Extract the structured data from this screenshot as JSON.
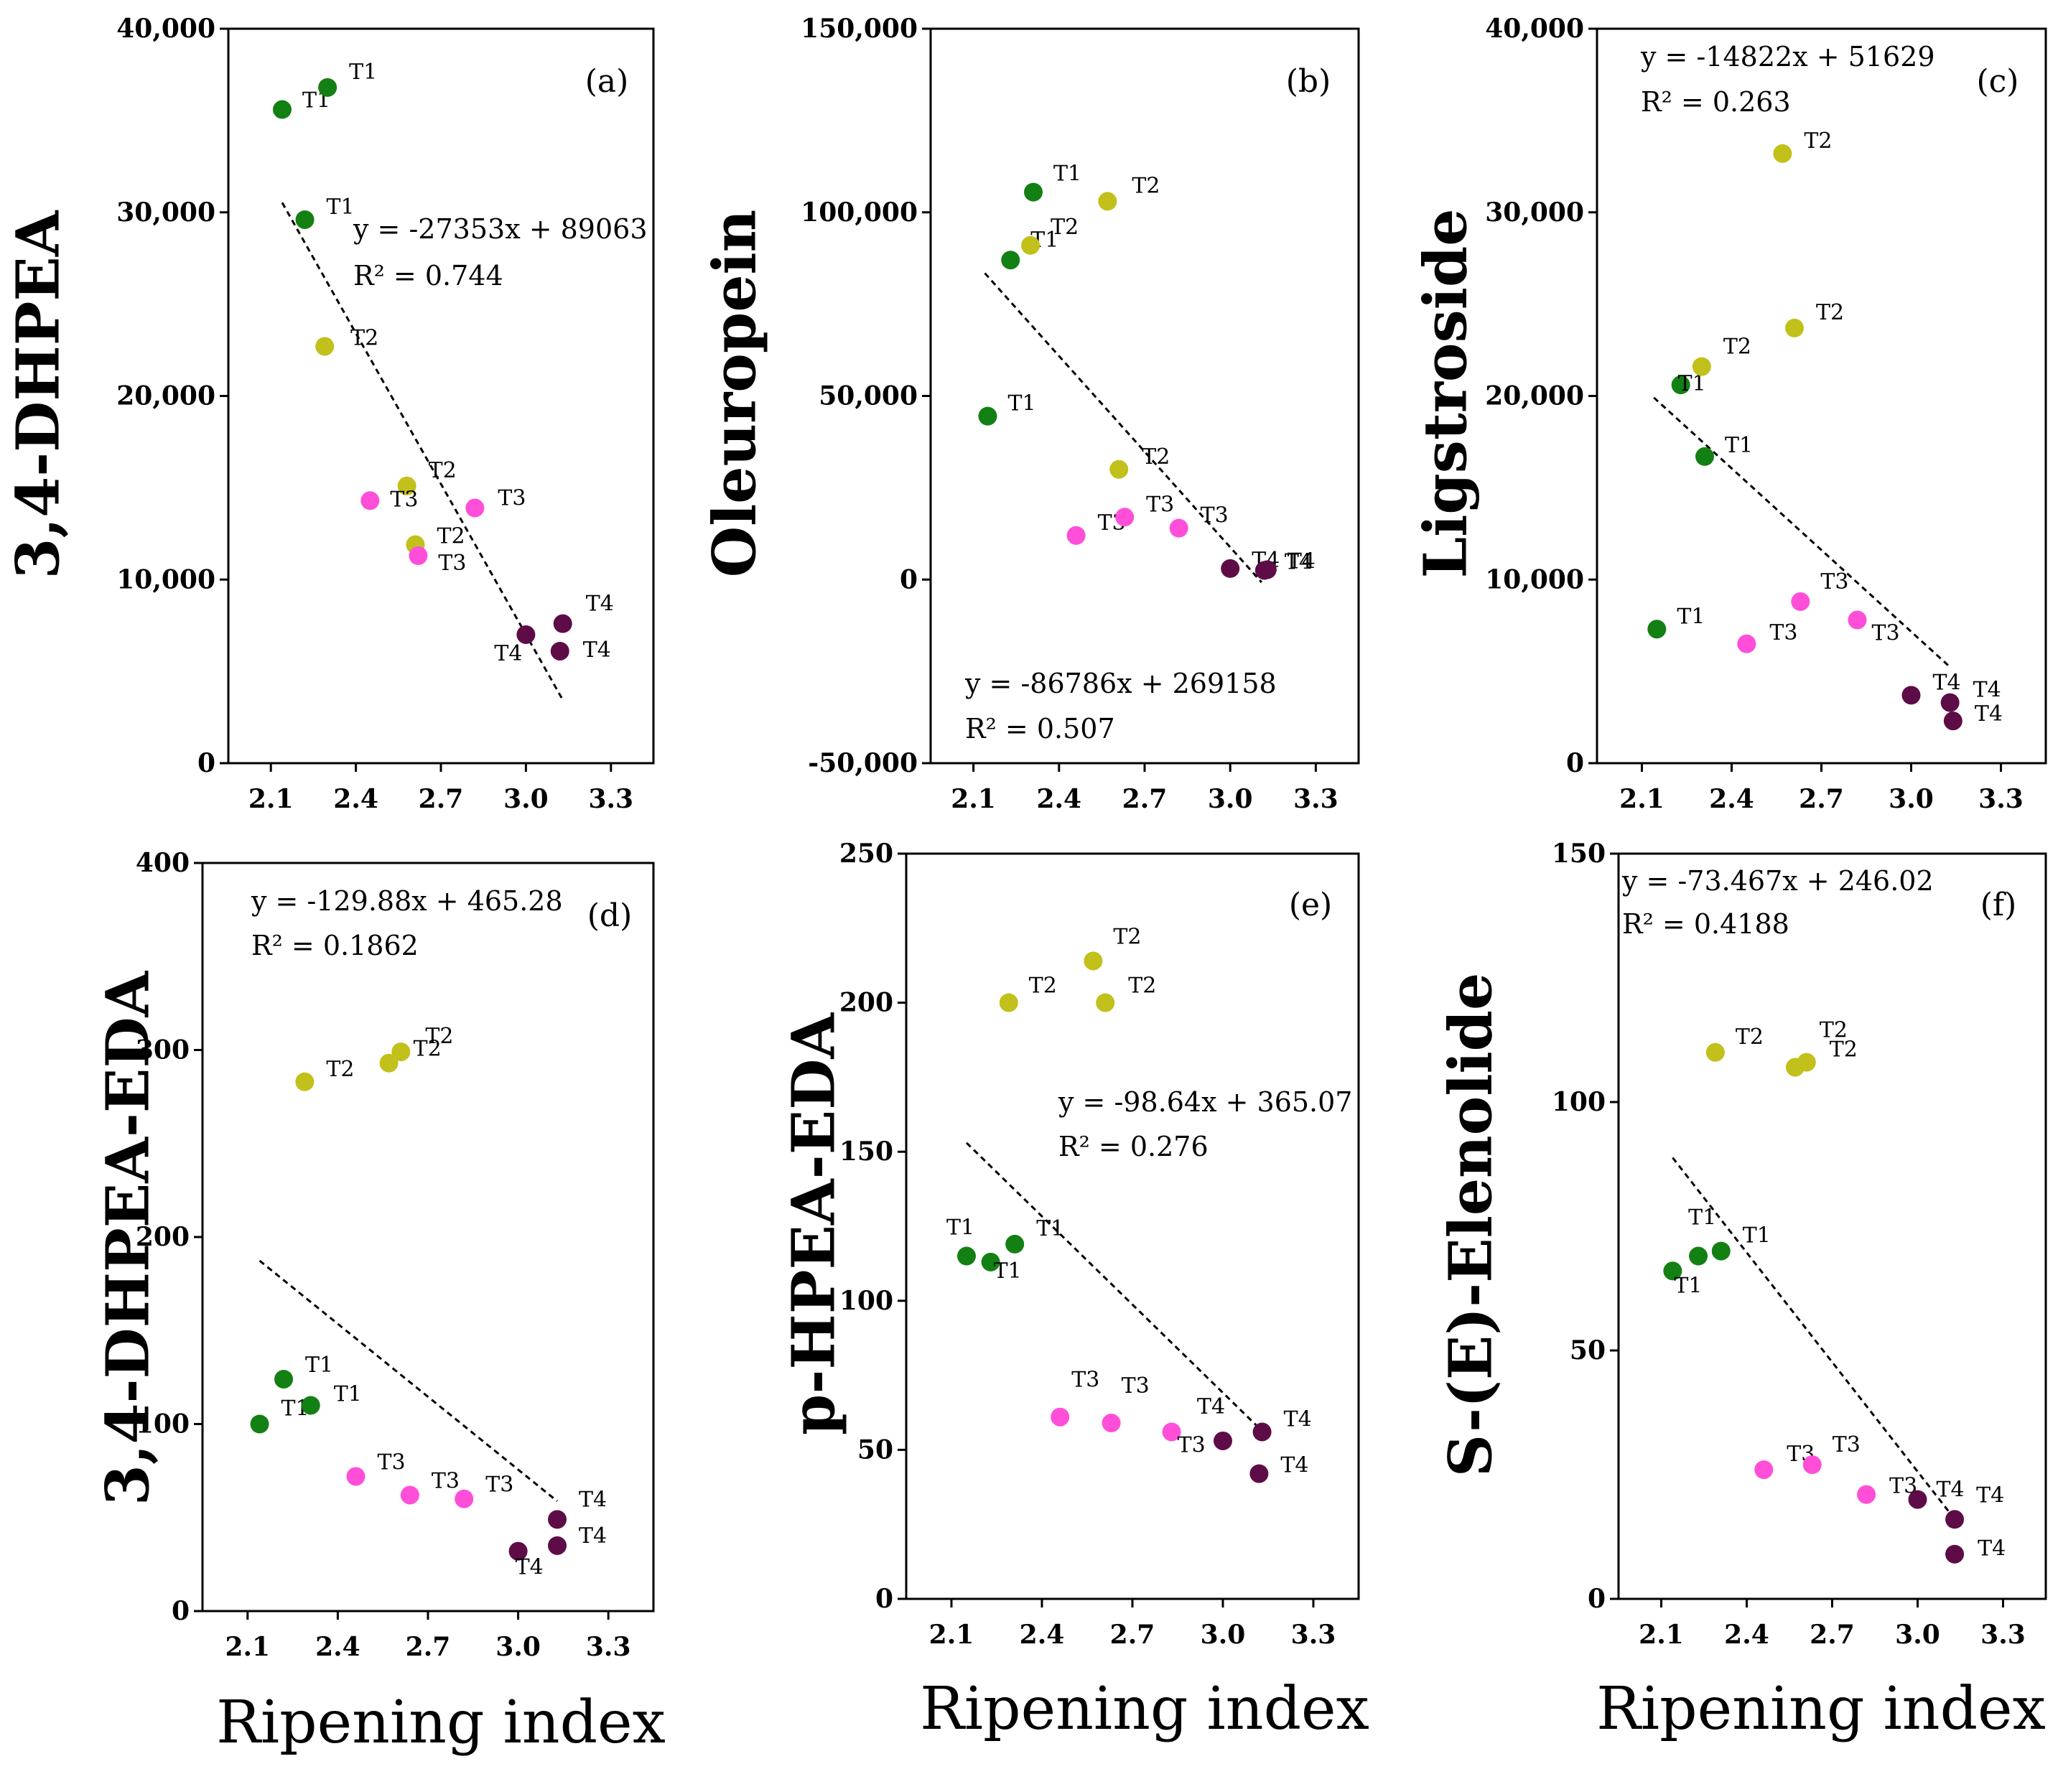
{
  "colors": {
    "T1": "#138013",
    "T2": "#c2c01a",
    "T3": "#ff4fd9",
    "T4": "#5e0c47",
    "axis": "#000000",
    "trend": "#000000"
  },
  "chart_data": [
    {
      "type": "scatter",
      "panel": "(a)",
      "ylabel": "3,4-DHPEA",
      "xlabel": "",
      "xlim": [
        1.95,
        3.45
      ],
      "xticks": [
        "2.1",
        "2.4",
        "2.7",
        "3.0",
        "3.3"
      ],
      "ylim": [
        0,
        40000
      ],
      "yticks": [
        {
          "v": 0,
          "t": "0"
        },
        {
          "v": 10000,
          "t": "10,000"
        },
        {
          "v": 20000,
          "t": "20,000"
        },
        {
          "v": 30000,
          "t": "30,000"
        },
        {
          "v": 40000,
          "t": "40,000"
        }
      ],
      "equation": "y = -27353x + 89063",
      "r2": "R² = 0.744",
      "trend": {
        "x1": 2.14,
        "x2": 3.13,
        "m": -27353,
        "b": 89063
      },
      "points": [
        {
          "x": 2.14,
          "y": 35600,
          "g": "T1",
          "label": "T1"
        },
        {
          "x": 2.3,
          "y": 36800,
          "g": "T1",
          "label": "T1"
        },
        {
          "x": 2.22,
          "y": 29600,
          "g": "T1",
          "label": "T1"
        },
        {
          "x": 2.29,
          "y": 22700,
          "g": "T2",
          "label": "T2"
        },
        {
          "x": 2.58,
          "y": 15100,
          "g": "T2",
          "label": "T2"
        },
        {
          "x": 2.61,
          "y": 11900,
          "g": "T2",
          "label": "T2"
        },
        {
          "x": 2.45,
          "y": 14300,
          "g": "T3",
          "label": "T3"
        },
        {
          "x": 2.62,
          "y": 11300,
          "g": "T3",
          "label": "T3"
        },
        {
          "x": 2.82,
          "y": 13900,
          "g": "T3",
          "label": "T3"
        },
        {
          "x": 3.0,
          "y": 7000,
          "g": "T4",
          "label": "T4"
        },
        {
          "x": 3.13,
          "y": 7600,
          "g": "T4",
          "label": "T4"
        },
        {
          "x": 3.12,
          "y": 6100,
          "g": "T4",
          "label": "T4"
        }
      ]
    },
    {
      "type": "scatter",
      "panel": "(b)",
      "ylabel": "Oleuropein",
      "xlabel": "",
      "xlim": [
        1.95,
        3.45
      ],
      "xticks": [
        "2.1",
        "2.4",
        "2.7",
        "3.0",
        "3.3"
      ],
      "ylim": [
        -50000,
        150000
      ],
      "yticks": [
        {
          "v": -50000,
          "t": "-50,000"
        },
        {
          "v": 0,
          "t": "0"
        },
        {
          "v": 50000,
          "t": "50,000"
        },
        {
          "v": 100000,
          "t": "100,000"
        },
        {
          "v": 150000,
          "t": "150,000"
        }
      ],
      "equation": "y = -86786x + 269158",
      "r2": "R² = 0.507",
      "trend": {
        "x1": 2.14,
        "x2": 3.11,
        "m": -86786,
        "b": 269158
      },
      "points": [
        {
          "x": 2.15,
          "y": 44500,
          "g": "T1",
          "label": "T1"
        },
        {
          "x": 2.23,
          "y": 87000,
          "g": "T1",
          "label": "T1"
        },
        {
          "x": 2.31,
          "y": 105500,
          "g": "T1",
          "label": "T1"
        },
        {
          "x": 2.3,
          "y": 91000,
          "g": "T2",
          "label": "T2"
        },
        {
          "x": 2.57,
          "y": 103000,
          "g": "T2",
          "label": "T2"
        },
        {
          "x": 2.61,
          "y": 30000,
          "g": "T2",
          "label": "T2"
        },
        {
          "x": 2.46,
          "y": 12000,
          "g": "T3",
          "label": "T3"
        },
        {
          "x": 2.63,
          "y": 17000,
          "g": "T3",
          "label": "T3"
        },
        {
          "x": 2.82,
          "y": 14000,
          "g": "T3",
          "label": "T3"
        },
        {
          "x": 3.0,
          "y": 3000,
          "g": "T4",
          "label": "T4"
        },
        {
          "x": 3.13,
          "y": 2700,
          "g": "T4",
          "label": "T4"
        },
        {
          "x": 3.12,
          "y": 2500,
          "g": "T4",
          "label": "T4"
        }
      ]
    },
    {
      "type": "scatter",
      "panel": "(c)",
      "ylabel": "Ligstroside",
      "xlabel": "",
      "xlim": [
        1.95,
        3.45
      ],
      "xticks": [
        "2.1",
        "2.4",
        "2.7",
        "3.0",
        "3.3"
      ],
      "ylim": [
        0,
        40000
      ],
      "yticks": [
        {
          "v": 0,
          "t": "0"
        },
        {
          "v": 10000,
          "t": "10,000"
        },
        {
          "v": 20000,
          "t": "20,000"
        },
        {
          "v": 30000,
          "t": "30,000"
        },
        {
          "v": 40000,
          "t": "40,000"
        }
      ],
      "equation": "y = -14822x + 51629",
      "r2": "R² = 0.263",
      "trend": {
        "x1": 2.14,
        "x2": 3.13,
        "m": -14822,
        "b": 51629
      },
      "points": [
        {
          "x": 2.15,
          "y": 7300,
          "g": "T1",
          "label": "T1"
        },
        {
          "x": 2.23,
          "y": 20600,
          "g": "T1",
          "label": "T1"
        },
        {
          "x": 2.31,
          "y": 16700,
          "g": "T1",
          "label": "T1"
        },
        {
          "x": 2.3,
          "y": 21600,
          "g": "T2",
          "label": "T2"
        },
        {
          "x": 2.57,
          "y": 33200,
          "g": "T2",
          "label": "T2"
        },
        {
          "x": 2.61,
          "y": 23700,
          "g": "T2",
          "label": "T2"
        },
        {
          "x": 2.45,
          "y": 6500,
          "g": "T3",
          "label": "T3"
        },
        {
          "x": 2.63,
          "y": 8800,
          "g": "T3",
          "label": "T3"
        },
        {
          "x": 2.82,
          "y": 7800,
          "g": "T3",
          "label": "T3"
        },
        {
          "x": 3.0,
          "y": 3700,
          "g": "T4",
          "label": "T4"
        },
        {
          "x": 3.13,
          "y": 3300,
          "g": "T4",
          "label": "T4"
        },
        {
          "x": 3.14,
          "y": 2300,
          "g": "T4",
          "label": "T4"
        }
      ]
    },
    {
      "type": "scatter",
      "panel": "(d)",
      "ylabel": "3,4-DHPEA-EDA",
      "xlabel": "Ripening index",
      "xlim": [
        1.95,
        3.45
      ],
      "xticks": [
        "2.1",
        "2.4",
        "2.7",
        "3.0",
        "3.3"
      ],
      "ylim": [
        0,
        400
      ],
      "yticks": [
        {
          "v": 0,
          "t": "0"
        },
        {
          "v": 100,
          "t": "100"
        },
        {
          "v": 200,
          "t": "200"
        },
        {
          "v": 300,
          "t": "300"
        },
        {
          "v": 400,
          "t": "400"
        }
      ],
      "equation": "y = -129.88x + 465.28",
      "r2": "R² = 0.1862",
      "trend": {
        "x1": 2.14,
        "x2": 3.13,
        "m": -129.88,
        "b": 465.28
      },
      "points": [
        {
          "x": 2.14,
          "y": 100,
          "g": "T1",
          "label": "T1"
        },
        {
          "x": 2.22,
          "y": 124,
          "g": "T1",
          "label": "T1"
        },
        {
          "x": 2.31,
          "y": 110,
          "g": "T1",
          "label": "T1"
        },
        {
          "x": 2.29,
          "y": 283,
          "g": "T2",
          "label": "T2"
        },
        {
          "x": 2.57,
          "y": 293,
          "g": "T2",
          "label": "T2"
        },
        {
          "x": 2.61,
          "y": 299,
          "g": "T2",
          "label": "T2"
        },
        {
          "x": 2.46,
          "y": 72,
          "g": "T3",
          "label": "T3"
        },
        {
          "x": 2.64,
          "y": 62,
          "g": "T3",
          "label": "T3"
        },
        {
          "x": 2.82,
          "y": 60,
          "g": "T3",
          "label": "T3"
        },
        {
          "x": 3.0,
          "y": 32,
          "g": "T4",
          "label": "T4"
        },
        {
          "x": 3.13,
          "y": 49,
          "g": "T4",
          "label": "T4"
        },
        {
          "x": 3.13,
          "y": 35,
          "g": "T4",
          "label": "T4"
        }
      ]
    },
    {
      "type": "scatter",
      "panel": "(e)",
      "ylabel": "p-HPEA-EDA",
      "xlabel": "Ripening index",
      "xlim": [
        1.95,
        3.45
      ],
      "xticks": [
        "2.1",
        "2.4",
        "2.7",
        "3.0",
        "3.3"
      ],
      "ylim": [
        0,
        250
      ],
      "yticks": [
        {
          "v": 0,
          "t": "0"
        },
        {
          "v": 50,
          "t": "50"
        },
        {
          "v": 100,
          "t": "100"
        },
        {
          "v": 150,
          "t": "150"
        },
        {
          "v": 200,
          "t": "200"
        },
        {
          "v": 250,
          "t": "250"
        }
      ],
      "equation": "y = -98.64x + 365.07",
      "r2": "R² = 0.276",
      "trend": {
        "x1": 2.15,
        "x2": 3.12,
        "m": -98.64,
        "b": 365.07
      },
      "points": [
        {
          "x": 2.15,
          "y": 115,
          "g": "T1",
          "label": "T1"
        },
        {
          "x": 2.23,
          "y": 113,
          "g": "T1",
          "label": "T1"
        },
        {
          "x": 2.31,
          "y": 119,
          "g": "T1",
          "label": "T1"
        },
        {
          "x": 2.29,
          "y": 200,
          "g": "T2",
          "label": "T2"
        },
        {
          "x": 2.57,
          "y": 214,
          "g": "T2",
          "label": "T2"
        },
        {
          "x": 2.61,
          "y": 200,
          "g": "T2",
          "label": "T2"
        },
        {
          "x": 2.46,
          "y": 61,
          "g": "T3",
          "label": "T3"
        },
        {
          "x": 2.63,
          "y": 59,
          "g": "T3",
          "label": "T3"
        },
        {
          "x": 2.83,
          "y": 56,
          "g": "T3",
          "label": "T3"
        },
        {
          "x": 3.0,
          "y": 53,
          "g": "T4",
          "label": "T4"
        },
        {
          "x": 3.13,
          "y": 56,
          "g": "T4",
          "label": "T4"
        },
        {
          "x": 3.12,
          "y": 42,
          "g": "T4",
          "label": "T4"
        }
      ]
    },
    {
      "type": "scatter",
      "panel": "(f)",
      "ylabel": "S-(E)-Elenolide",
      "xlabel": "Ripening index",
      "xlim": [
        1.95,
        3.45
      ],
      "xticks": [
        "2.1",
        "2.4",
        "2.7",
        "3.0",
        "3.3"
      ],
      "ylim": [
        0,
        150
      ],
      "yticks": [
        {
          "v": 0,
          "t": "0"
        },
        {
          "v": 50,
          "t": "50"
        },
        {
          "v": 100,
          "t": "100"
        },
        {
          "v": 150,
          "t": "150"
        }
      ],
      "equation": "y = -73.467x + 246.02",
      "r2": "R² = 0.4188",
      "trend": {
        "x1": 2.14,
        "x2": 3.12,
        "m": -73.467,
        "b": 246.02
      },
      "points": [
        {
          "x": 2.14,
          "y": 66,
          "g": "T1",
          "label": "T1"
        },
        {
          "x": 2.23,
          "y": 69,
          "g": "T1",
          "label": "T1"
        },
        {
          "x": 2.31,
          "y": 70,
          "g": "T1",
          "label": "T1"
        },
        {
          "x": 2.29,
          "y": 110,
          "g": "T2",
          "label": "T2"
        },
        {
          "x": 2.57,
          "y": 107,
          "g": "T2",
          "label": "T2"
        },
        {
          "x": 2.61,
          "y": 108,
          "g": "T2",
          "label": "T2"
        },
        {
          "x": 2.46,
          "y": 26,
          "g": "T3",
          "label": "T3"
        },
        {
          "x": 2.63,
          "y": 27,
          "g": "T3",
          "label": "T3"
        },
        {
          "x": 2.82,
          "y": 21,
          "g": "T3",
          "label": "T3"
        },
        {
          "x": 3.0,
          "y": 20,
          "g": "T4",
          "label": "T4"
        },
        {
          "x": 3.13,
          "y": 16,
          "g": "T4",
          "label": "T4"
        },
        {
          "x": 3.13,
          "y": 9,
          "g": "T4",
          "label": "T4"
        }
      ]
    }
  ]
}
